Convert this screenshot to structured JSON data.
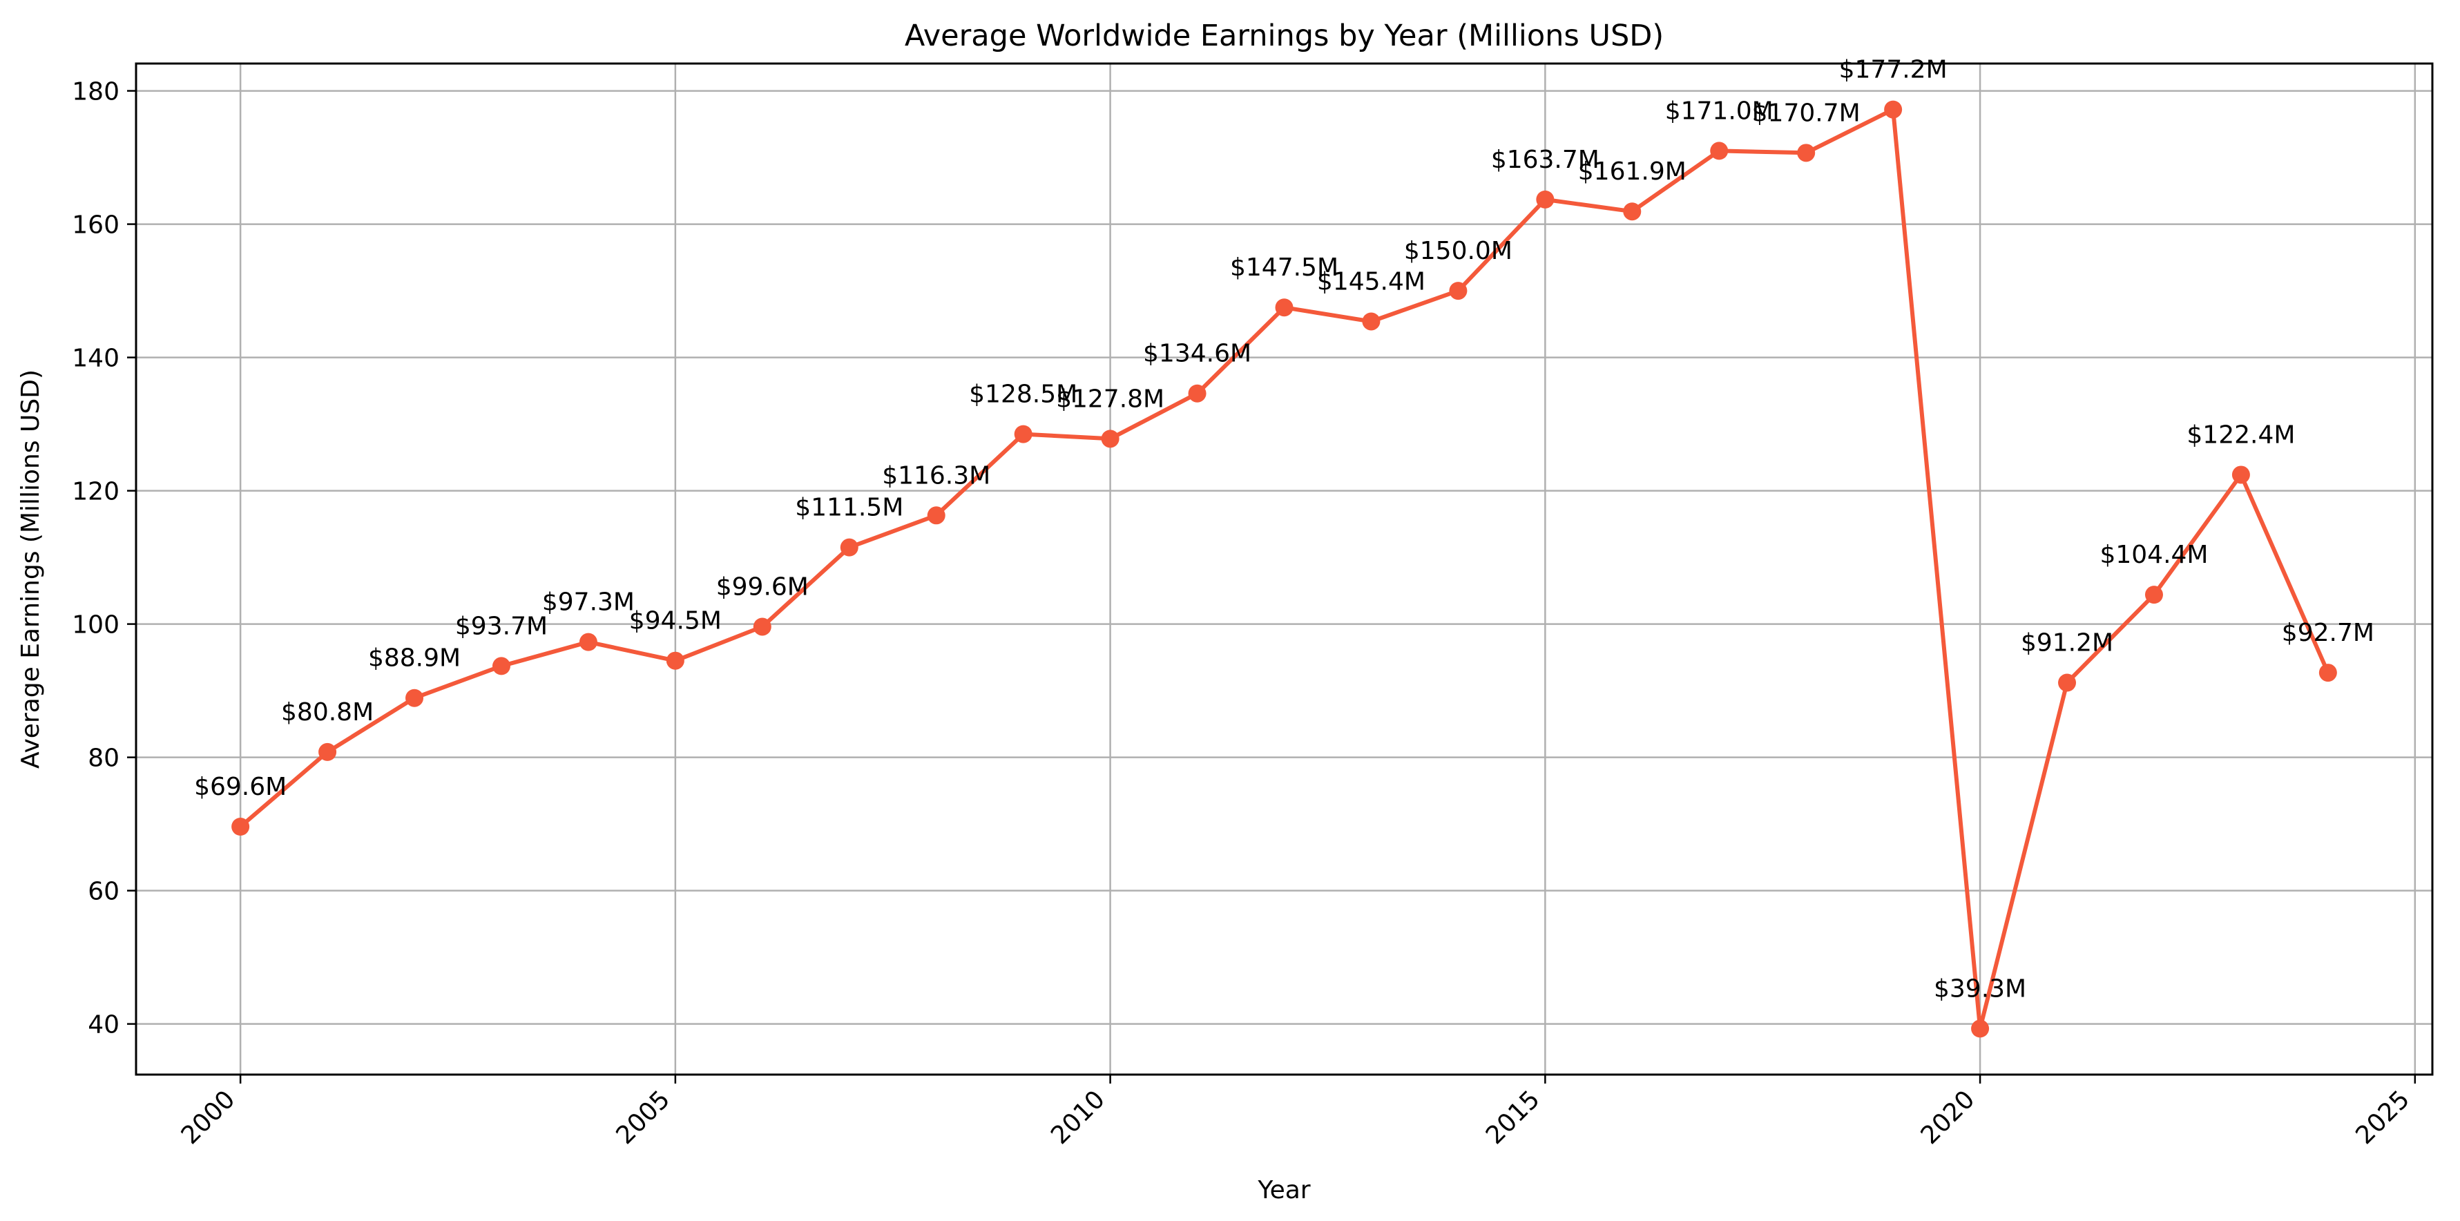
{
  "chart_data": {
    "type": "line",
    "title": "Average Worldwide Earnings by Year (Millions USD)",
    "xlabel": "Year",
    "ylabel": "Average Earnings (Millions USD)",
    "xlim": [
      1998.8,
      2025.2
    ],
    "ylim": [
      32.4,
      184.1
    ],
    "x_ticks": [
      2000,
      2005,
      2010,
      2015,
      2020,
      2025
    ],
    "y_ticks": [
      40,
      60,
      80,
      100,
      120,
      140,
      160,
      180
    ],
    "grid": true,
    "x_tick_rotation_deg": -45,
    "colors": {
      "line": "#f4593a",
      "grid": "#b0b0b0",
      "axis": "#000000"
    },
    "series": [
      {
        "x": [
          2000,
          2001,
          2002,
          2003,
          2004,
          2005,
          2006,
          2007,
          2008,
          2009,
          2010,
          2011,
          2012,
          2013,
          2014,
          2015,
          2016,
          2017,
          2018,
          2019,
          2020,
          2021,
          2022,
          2023,
          2024
        ],
        "values": [
          69.6,
          80.8,
          88.9,
          93.7,
          97.3,
          94.5,
          99.6,
          111.5,
          116.3,
          128.5,
          127.8,
          134.6,
          147.5,
          145.4,
          150.0,
          163.7,
          161.9,
          171.0,
          170.7,
          177.2,
          39.3,
          91.2,
          104.4,
          122.4,
          92.7
        ],
        "labels": [
          "$69.6M",
          "$80.8M",
          "$88.9M",
          "$93.7M",
          "$97.3M",
          "$94.5M",
          "$99.6M",
          "$111.5M",
          "$116.3M",
          "$128.5M",
          "$127.8M",
          "$134.6M",
          "$147.5M",
          "$145.4M",
          "$150.0M",
          "$163.7M",
          "$161.9M",
          "$171.0M",
          "$170.7M",
          "$177.2M",
          "$39.3M",
          "$91.2M",
          "$104.4M",
          "$122.4M",
          "$92.7M"
        ]
      }
    ]
  }
}
